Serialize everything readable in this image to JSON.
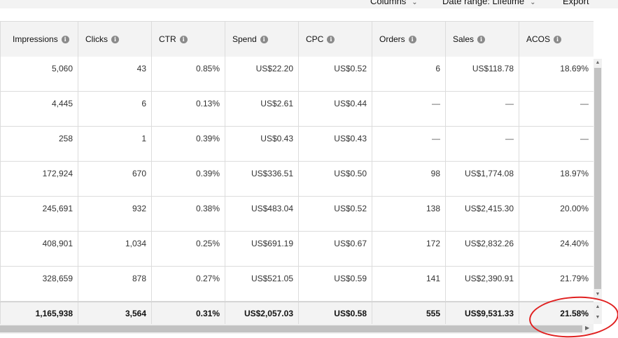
{
  "toolbar": {
    "columns_label": "Columns",
    "date_range_label": "Date range: Lifetime",
    "export_label": "Export"
  },
  "columns": [
    {
      "key": "impressions",
      "label": "Impressions"
    },
    {
      "key": "clicks",
      "label": "Clicks"
    },
    {
      "key": "ctr",
      "label": "CTR"
    },
    {
      "key": "spend",
      "label": "Spend"
    },
    {
      "key": "cpc",
      "label": "CPC"
    },
    {
      "key": "orders",
      "label": "Orders"
    },
    {
      "key": "sales",
      "label": "Sales"
    },
    {
      "key": "acos",
      "label": "ACOS"
    }
  ],
  "rows": [
    [
      "5,060",
      "43",
      "0.85%",
      "US$22.20",
      "US$0.52",
      "6",
      "US$118.78",
      "18.69%"
    ],
    [
      "4,445",
      "6",
      "0.13%",
      "US$2.61",
      "US$0.44",
      "—",
      "—",
      "—"
    ],
    [
      "258",
      "1",
      "0.39%",
      "US$0.43",
      "US$0.43",
      "—",
      "—",
      "—"
    ],
    [
      "172,924",
      "670",
      "0.39%",
      "US$336.51",
      "US$0.50",
      "98",
      "US$1,774.08",
      "18.97%"
    ],
    [
      "245,691",
      "932",
      "0.38%",
      "US$483.04",
      "US$0.52",
      "138",
      "US$2,415.30",
      "20.00%"
    ],
    [
      "408,901",
      "1,034",
      "0.25%",
      "US$691.19",
      "US$0.67",
      "172",
      "US$2,832.26",
      "24.40%"
    ],
    [
      "328,659",
      "878",
      "0.27%",
      "US$521.05",
      "US$0.59",
      "141",
      "US$2,390.91",
      "21.79%"
    ]
  ],
  "totals": [
    "1,165,938",
    "3,564",
    "0.31%",
    "US$2,057.03",
    "US$0.58",
    "555",
    "US$9,531.33",
    "21.58%"
  ],
  "icons": {
    "info": "info-icon",
    "chevron": "chevron-down-icon",
    "scroll_up": "scroll-up-arrow-icon",
    "scroll_down": "scroll-down-arrow-icon",
    "scroll_right": "scroll-right-arrow-icon"
  },
  "colors": {
    "header_bg": "#f3f3f3",
    "annotation": "#e02020",
    "border": "#dcdcdc"
  }
}
